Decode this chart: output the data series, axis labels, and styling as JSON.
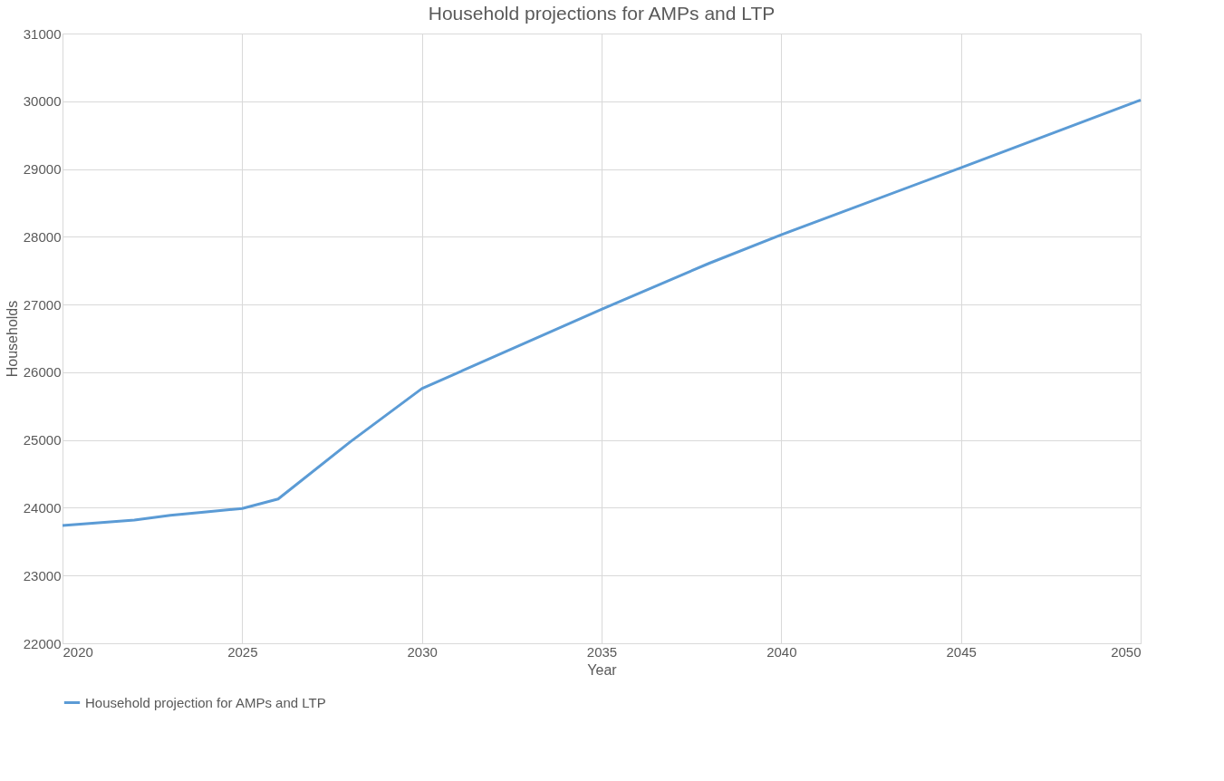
{
  "chart_data": {
    "type": "line",
    "title": "Household projections for AMPs and LTP",
    "xlabel": "Year",
    "ylabel": "Households",
    "x": [
      2020,
      2021,
      2022,
      2023,
      2024,
      2025,
      2026,
      2028,
      2030,
      2035,
      2038,
      2040,
      2045,
      2050
    ],
    "series": [
      {
        "name": "Household projection for AMPs and LTP",
        "color": "#5b9bd5",
        "values": [
          23740,
          23780,
          23820,
          23890,
          23940,
          23990,
          24130,
          24970,
          25760,
          26930,
          27610,
          28030,
          29020,
          30020
        ]
      }
    ],
    "xlim": [
      2020,
      2050
    ],
    "xticks": [
      2020,
      2025,
      2030,
      2035,
      2040,
      2045,
      2050
    ],
    "ylim": [
      22000,
      31000
    ],
    "yticks": [
      22000,
      23000,
      24000,
      25000,
      26000,
      27000,
      28000,
      29000,
      30000,
      31000
    ],
    "grid": true,
    "legend": "bottom",
    "marker": "none",
    "line_style": "solid"
  }
}
